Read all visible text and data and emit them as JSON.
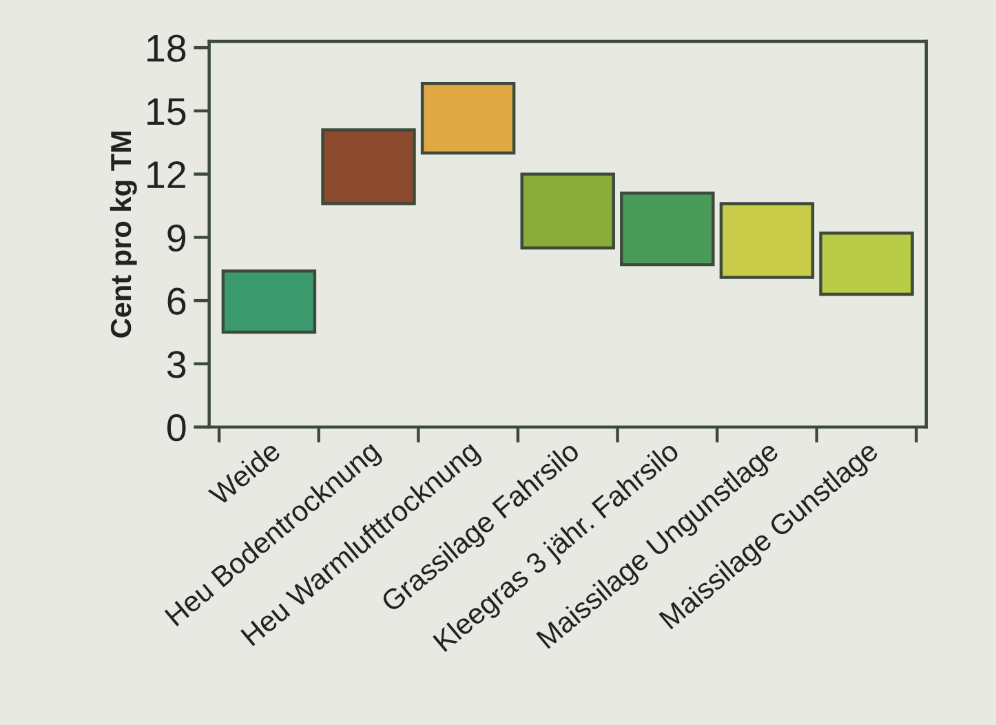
{
  "chart_data": {
    "type": "bar",
    "ylabel": "Cent pro kg TM",
    "categories": [
      "Weide",
      "Heu Bodentrocknung",
      "Heu Warmlufttrocknung",
      "Grassilage Fahrsilo",
      "Kleegras 3 jähr. Fahrsilo",
      "Maissilage Ungunstlage",
      "Maissilage Gunstlage"
    ],
    "base": [
      4.5,
      10.6,
      13.0,
      8.5,
      7.7,
      7.1,
      6.3
    ],
    "values": [
      2.9,
      3.5,
      3.3,
      3.5,
      3.4,
      3.5,
      2.9
    ],
    "colors": [
      "#3a9a6e",
      "#8b4a2e",
      "#e0a845",
      "#8aaa3a",
      "#4a9a5a",
      "#c8cc48",
      "#b8cc48"
    ],
    "ylim": [
      0,
      18.3
    ],
    "yticks": [
      0,
      3,
      6,
      9,
      12,
      15,
      18
    ],
    "grid": false,
    "legend": false
  }
}
